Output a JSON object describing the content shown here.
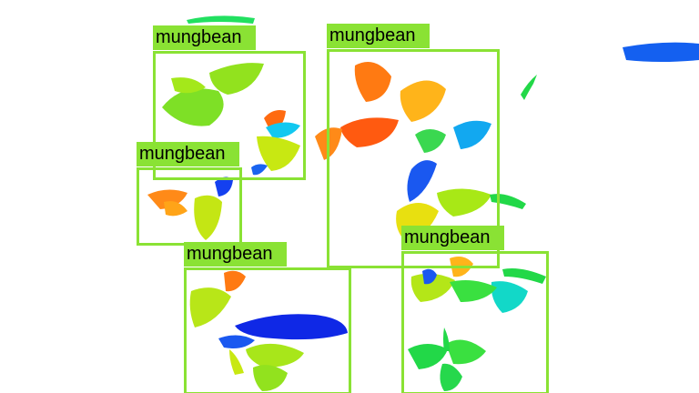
{
  "colors": {
    "box": "#8ae234",
    "label_bg": "#8ae234",
    "label_text": "#000000",
    "background": "#ffffff"
  },
  "detections": [
    {
      "label": "mungbean"
    },
    {
      "label": "mungbean"
    },
    {
      "label": "mungbean"
    },
    {
      "label": "mungbean"
    },
    {
      "label": "mungbean"
    }
  ]
}
